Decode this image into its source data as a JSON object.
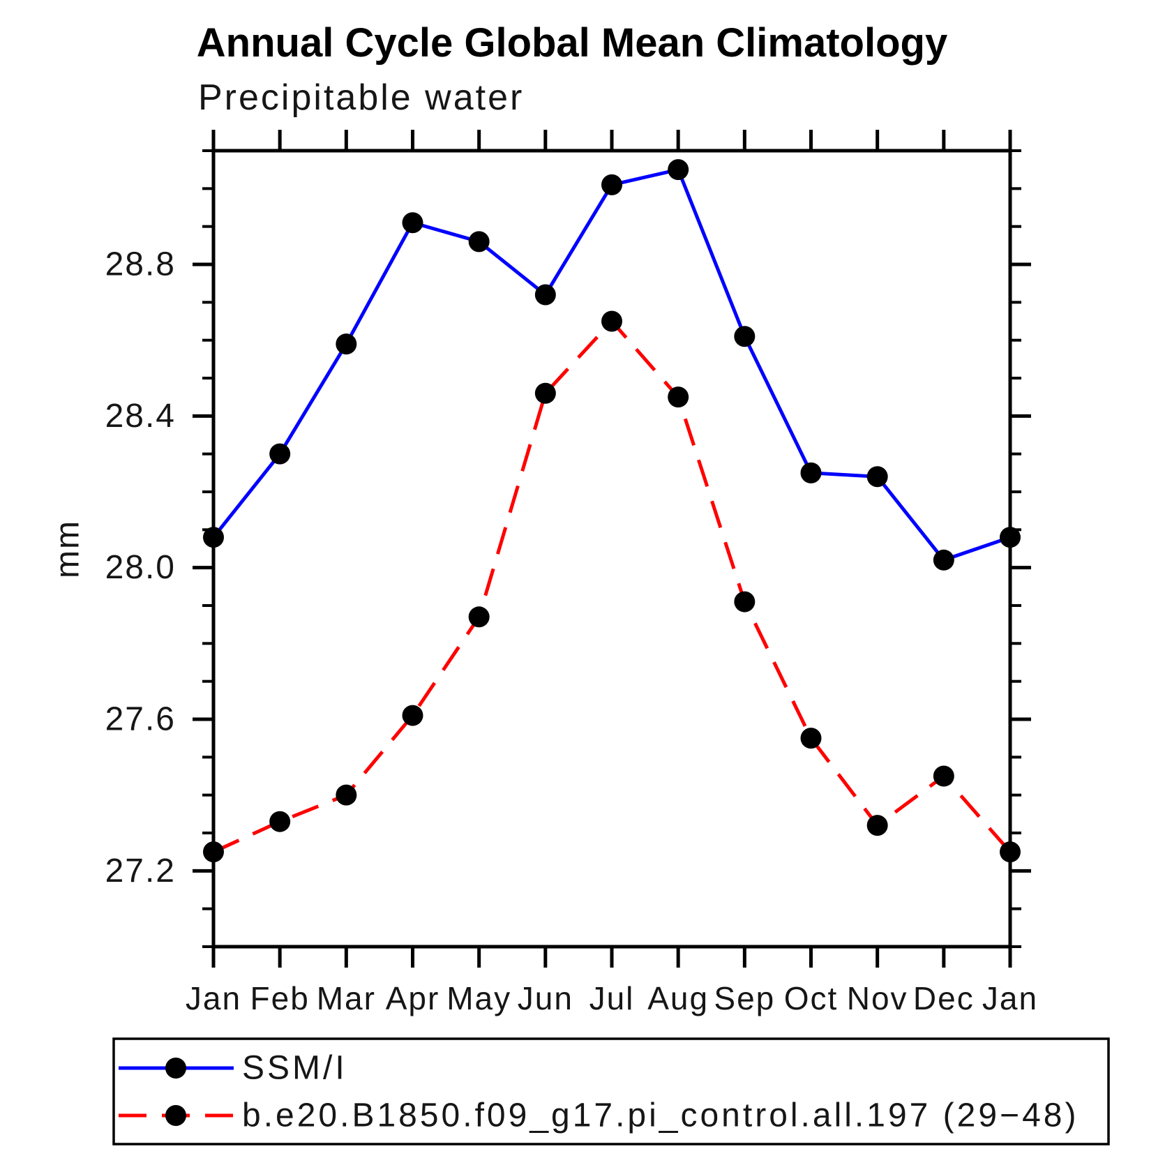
{
  "chart_data": {
    "type": "line",
    "title": "Annual Cycle Global Mean Climatology",
    "subtitle": "Precipitable water",
    "ylabel": "mm",
    "xlabel": "",
    "categories": [
      "Jan",
      "Feb",
      "Mar",
      "Apr",
      "May",
      "Jun",
      "Jul",
      "Aug",
      "Sep",
      "Oct",
      "Nov",
      "Dec",
      "Jan"
    ],
    "ylim": [
      27.0,
      29.1
    ],
    "y_major_ticks": [
      27.2,
      27.6,
      28.0,
      28.4,
      28.8
    ],
    "y_minor_step": 0.1,
    "grid": false,
    "legend_position": "bottom-left",
    "frame_color": "#000000",
    "marker_color": "#000000",
    "series": [
      {
        "name": "SSM/I",
        "color": "#0000ff",
        "style": "solid",
        "marker": "circle",
        "values": [
          28.08,
          28.3,
          28.59,
          28.91,
          28.86,
          28.72,
          29.01,
          29.05,
          28.61,
          28.25,
          28.24,
          28.02,
          28.08
        ]
      },
      {
        "name": "b.e20.B1850.f09_g17.pi_control.all.197 (29−48)",
        "color": "#ff0000",
        "style": "dashed",
        "marker": "circle",
        "values": [
          27.25,
          27.33,
          27.4,
          27.61,
          27.87,
          28.46,
          28.65,
          28.45,
          27.91,
          27.55,
          27.32,
          27.45,
          27.25
        ]
      }
    ]
  }
}
